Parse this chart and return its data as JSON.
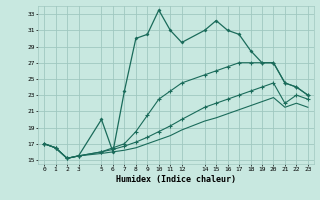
{
  "xlabel": "Humidex (Indice chaleur)",
  "background_color": "#c8e8e0",
  "grid_color": "#a0c8c0",
  "line_color": "#1a6b5a",
  "xlim": [
    -0.5,
    23.5
  ],
  "ylim": [
    14.5,
    34.0
  ],
  "xticks": [
    0,
    1,
    2,
    3,
    5,
    6,
    7,
    8,
    9,
    10,
    11,
    12,
    14,
    15,
    16,
    17,
    18,
    19,
    20,
    21,
    22,
    23
  ],
  "yticks": [
    15,
    17,
    19,
    21,
    23,
    25,
    27,
    29,
    31,
    33
  ],
  "line1_x": [
    0,
    1,
    2,
    3,
    5,
    6,
    7,
    8,
    9,
    10,
    11,
    12,
    14,
    15,
    16,
    17,
    18,
    19,
    20,
    21,
    22,
    23
  ],
  "line1_y": [
    17.0,
    16.5,
    15.2,
    15.5,
    20.0,
    16.0,
    23.5,
    30.0,
    30.5,
    33.5,
    31.0,
    29.5,
    31.0,
    32.2,
    31.0,
    30.5,
    28.5,
    27.0,
    27.0,
    24.5,
    24.0,
    23.0
  ],
  "line2_x": [
    0,
    1,
    2,
    3,
    5,
    6,
    7,
    8,
    9,
    10,
    11,
    12,
    14,
    15,
    16,
    17,
    18,
    19,
    20,
    21,
    22,
    23
  ],
  "line2_y": [
    17.0,
    16.5,
    15.2,
    15.5,
    16.0,
    16.5,
    17.0,
    18.5,
    20.5,
    22.5,
    23.5,
    24.5,
    25.5,
    26.0,
    26.5,
    27.0,
    27.0,
    27.0,
    27.0,
    24.5,
    24.0,
    23.0
  ],
  "line3_x": [
    0,
    1,
    2,
    3,
    5,
    6,
    7,
    8,
    9,
    10,
    11,
    12,
    14,
    15,
    16,
    17,
    18,
    19,
    20,
    21,
    22,
    23
  ],
  "line3_y": [
    17.0,
    16.5,
    15.2,
    15.5,
    16.0,
    16.3,
    16.7,
    17.2,
    17.8,
    18.5,
    19.2,
    20.0,
    21.5,
    22.0,
    22.5,
    23.0,
    23.5,
    24.0,
    24.5,
    22.0,
    23.0,
    22.5
  ],
  "line4_x": [
    0,
    1,
    2,
    3,
    5,
    6,
    7,
    8,
    9,
    10,
    11,
    12,
    14,
    15,
    16,
    17,
    18,
    19,
    20,
    21,
    22,
    23
  ],
  "line4_y": [
    17.0,
    16.5,
    15.2,
    15.5,
    15.8,
    16.0,
    16.2,
    16.5,
    17.0,
    17.5,
    18.0,
    18.7,
    19.8,
    20.2,
    20.7,
    21.2,
    21.7,
    22.2,
    22.7,
    21.5,
    22.0,
    21.5
  ]
}
